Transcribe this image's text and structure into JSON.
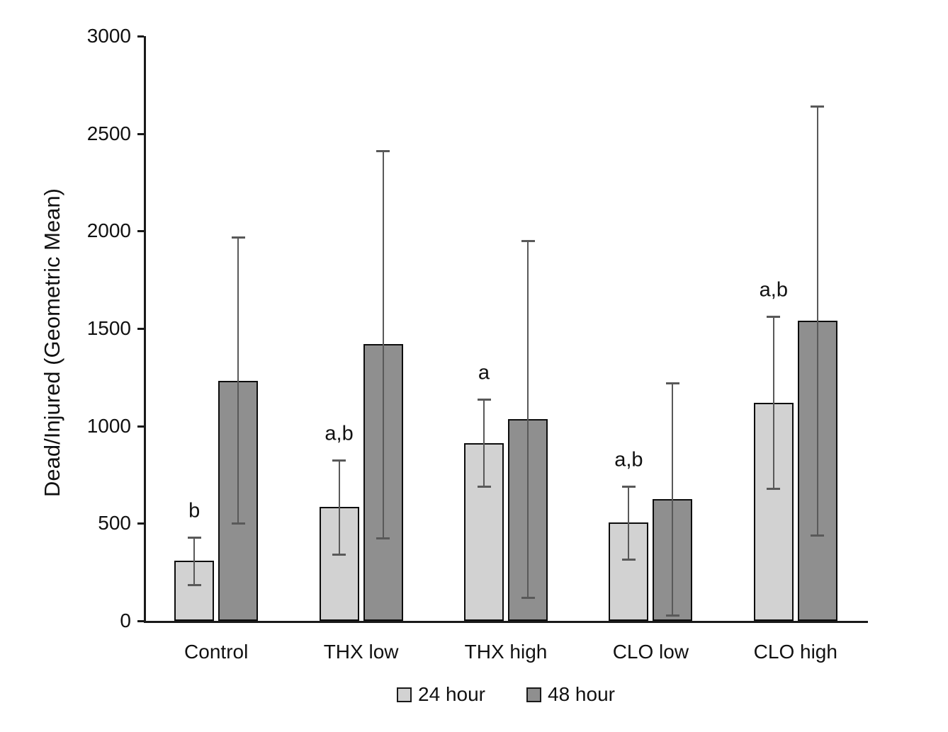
{
  "chart_data": {
    "type": "bar",
    "title": "",
    "ylabel": "Dead/Injured (Geometric Mean)",
    "xlabel": "",
    "ylim": [
      0,
      3000
    ],
    "yticks": [
      0,
      500,
      1000,
      1500,
      2000,
      2500,
      3000
    ],
    "grid": false,
    "legend_position": "bottom",
    "categories": [
      "Control",
      "THX low",
      "THX high",
      "CLO low",
      "CLO high"
    ],
    "series": [
      {
        "name": "24 hour",
        "color": "#d2d2d2",
        "values": [
          310,
          585,
          910,
          505,
          1120
        ],
        "error_low": [
          185,
          340,
          690,
          315,
          680
        ],
        "error_high": [
          430,
          825,
          1135,
          690,
          1560
        ]
      },
      {
        "name": "48 hour",
        "color": "#8f8f8f",
        "values": [
          1230,
          1420,
          1035,
          625,
          1540
        ],
        "error_low": [
          500,
          425,
          120,
          30,
          440
        ],
        "error_high": [
          1970,
          2410,
          1950,
          1220,
          2640
        ]
      }
    ],
    "sig_labels": [
      "b",
      "a,b",
      "a",
      "a,b",
      "a,b"
    ],
    "sig_labels_attached_to_series": "24 hour",
    "colors": {
      "bar_border": "#0d0d0d",
      "error_bar": "#595959",
      "axis": "#1a1a1a",
      "text": "#111111",
      "background": "#ffffff"
    }
  }
}
